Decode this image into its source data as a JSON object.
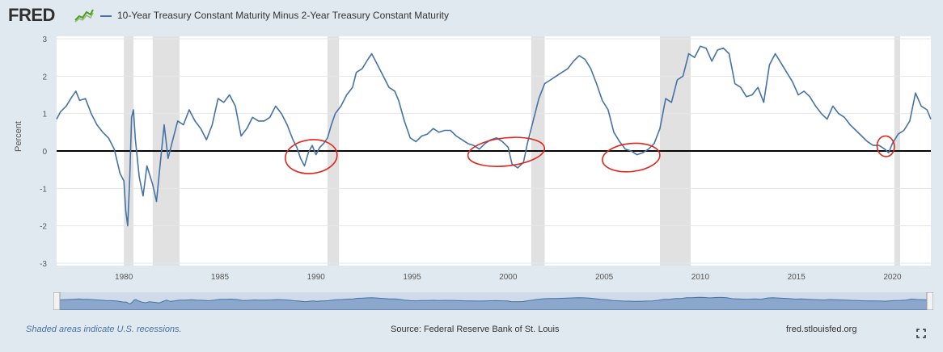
{
  "header": {
    "logo_text": "FRED",
    "logo_icon": "fred-chart-icon",
    "series_title": "10-Year Treasury Constant Maturity Minus 2-Year Treasury Constant Maturity"
  },
  "footer": {
    "recessions_note": "Shaded areas indicate U.S. recessions.",
    "source": "Source: Federal Reserve Bank of St. Louis",
    "site": "fred.stlouisfed.org",
    "fullscreen_icon": "fullscreen-icon"
  },
  "colors": {
    "series": "#4572a7",
    "recession": "#e1e1e1",
    "zero_line": "#000000",
    "annotation": "#e0261c",
    "page_bg": "#e1e9f0",
    "plot_bg": "#ffffff"
  },
  "chart_data": {
    "type": "line",
    "title": "10-Year Treasury Constant Maturity Minus 2-Year Treasury Constant Maturity",
    "ylabel": "Percent",
    "xlabel": "",
    "xlim": [
      1976.5,
      2022.0
    ],
    "ylim": [
      -3,
      3
    ],
    "x_ticks": [
      1980,
      1985,
      1990,
      1995,
      2000,
      2005,
      2010,
      2015,
      2020
    ],
    "y_ticks": [
      3,
      2,
      1,
      0,
      -1,
      -2,
      -3
    ],
    "grid": "horizontal",
    "reference_line": {
      "y": 0
    },
    "recessions": [
      [
        1980.0,
        1980.5
      ],
      [
        1981.5,
        1982.9
      ],
      [
        1990.6,
        1991.2
      ],
      [
        2001.2,
        2001.9
      ],
      [
        2007.9,
        2009.5
      ],
      [
        2020.1,
        2020.4
      ]
    ],
    "series": [
      {
        "values": [
          [
            1976.5,
            0.85
          ],
          [
            1976.7,
            1.05
          ],
          [
            1977.0,
            1.2
          ],
          [
            1977.3,
            1.45
          ],
          [
            1977.5,
            1.6
          ],
          [
            1977.7,
            1.35
          ],
          [
            1978.0,
            1.4
          ],
          [
            1978.3,
            1.0
          ],
          [
            1978.6,
            0.7
          ],
          [
            1978.9,
            0.5
          ],
          [
            1979.2,
            0.35
          ],
          [
            1979.5,
            0.05
          ],
          [
            1979.8,
            -0.6
          ],
          [
            1980.0,
            -0.8
          ],
          [
            1980.1,
            -1.6
          ],
          [
            1980.2,
            -2.0
          ],
          [
            1980.3,
            -0.8
          ],
          [
            1980.4,
            0.9
          ],
          [
            1980.5,
            1.1
          ],
          [
            1980.6,
            0.3
          ],
          [
            1980.8,
            -0.7
          ],
          [
            1981.0,
            -1.2
          ],
          [
            1981.2,
            -0.4
          ],
          [
            1981.5,
            -0.9
          ],
          [
            1981.7,
            -1.35
          ],
          [
            1981.9,
            -0.3
          ],
          [
            1982.1,
            0.7
          ],
          [
            1982.3,
            -0.2
          ],
          [
            1982.5,
            0.2
          ],
          [
            1982.8,
            0.8
          ],
          [
            1983.1,
            0.7
          ],
          [
            1983.4,
            1.1
          ],
          [
            1983.7,
            0.8
          ],
          [
            1984.0,
            0.6
          ],
          [
            1984.3,
            0.3
          ],
          [
            1984.6,
            0.7
          ],
          [
            1984.9,
            1.4
          ],
          [
            1985.2,
            1.3
          ],
          [
            1985.5,
            1.5
          ],
          [
            1985.8,
            1.2
          ],
          [
            1986.1,
            0.4
          ],
          [
            1986.4,
            0.6
          ],
          [
            1986.7,
            0.9
          ],
          [
            1987.0,
            0.8
          ],
          [
            1987.3,
            0.8
          ],
          [
            1987.6,
            0.9
          ],
          [
            1987.9,
            1.2
          ],
          [
            1988.2,
            1.0
          ],
          [
            1988.5,
            0.7
          ],
          [
            1988.8,
            0.3
          ],
          [
            1989.0,
            0.1
          ],
          [
            1989.2,
            -0.2
          ],
          [
            1989.4,
            -0.4
          ],
          [
            1989.6,
            -0.05
          ],
          [
            1989.8,
            0.15
          ],
          [
            1990.0,
            -0.1
          ],
          [
            1990.2,
            0.1
          ],
          [
            1990.4,
            0.2
          ],
          [
            1990.6,
            0.35
          ],
          [
            1990.8,
            0.7
          ],
          [
            1991.0,
            1.0
          ],
          [
            1991.3,
            1.2
          ],
          [
            1991.6,
            1.5
          ],
          [
            1991.9,
            1.7
          ],
          [
            1992.1,
            2.1
          ],
          [
            1992.4,
            2.2
          ],
          [
            1992.7,
            2.45
          ],
          [
            1992.9,
            2.6
          ],
          [
            1993.2,
            2.3
          ],
          [
            1993.5,
            2.0
          ],
          [
            1993.8,
            1.7
          ],
          [
            1994.1,
            1.6
          ],
          [
            1994.3,
            1.35
          ],
          [
            1994.6,
            0.8
          ],
          [
            1994.9,
            0.35
          ],
          [
            1995.2,
            0.25
          ],
          [
            1995.5,
            0.4
          ],
          [
            1995.8,
            0.45
          ],
          [
            1996.1,
            0.6
          ],
          [
            1996.4,
            0.5
          ],
          [
            1996.7,
            0.55
          ],
          [
            1997.0,
            0.55
          ],
          [
            1997.3,
            0.4
          ],
          [
            1997.6,
            0.3
          ],
          [
            1997.9,
            0.2
          ],
          [
            1998.2,
            0.15
          ],
          [
            1998.5,
            0.05
          ],
          [
            1998.8,
            0.2
          ],
          [
            1999.1,
            0.3
          ],
          [
            1999.4,
            0.35
          ],
          [
            1999.7,
            0.25
          ],
          [
            2000.0,
            0.1
          ],
          [
            2000.2,
            -0.35
          ],
          [
            2000.5,
            -0.45
          ],
          [
            2000.8,
            -0.3
          ],
          [
            2001.0,
            0.2
          ],
          [
            2001.3,
            0.8
          ],
          [
            2001.6,
            1.4
          ],
          [
            2001.9,
            1.8
          ],
          [
            2002.2,
            1.9
          ],
          [
            2002.5,
            2.0
          ],
          [
            2002.8,
            2.1
          ],
          [
            2003.1,
            2.2
          ],
          [
            2003.4,
            2.4
          ],
          [
            2003.7,
            2.55
          ],
          [
            2004.0,
            2.45
          ],
          [
            2004.3,
            2.2
          ],
          [
            2004.6,
            1.8
          ],
          [
            2004.9,
            1.35
          ],
          [
            2005.2,
            1.1
          ],
          [
            2005.5,
            0.5
          ],
          [
            2005.8,
            0.25
          ],
          [
            2006.1,
            0.05
          ],
          [
            2006.4,
            0.0
          ],
          [
            2006.7,
            -0.1
          ],
          [
            2007.0,
            -0.05
          ],
          [
            2007.3,
            0.05
          ],
          [
            2007.6,
            0.2
          ],
          [
            2007.9,
            0.6
          ],
          [
            2008.2,
            1.4
          ],
          [
            2008.5,
            1.3
          ],
          [
            2008.8,
            1.9
          ],
          [
            2009.1,
            2.0
          ],
          [
            2009.4,
            2.6
          ],
          [
            2009.7,
            2.5
          ],
          [
            2010.0,
            2.8
          ],
          [
            2010.3,
            2.75
          ],
          [
            2010.6,
            2.4
          ],
          [
            2010.9,
            2.7
          ],
          [
            2011.2,
            2.75
          ],
          [
            2011.5,
            2.6
          ],
          [
            2011.8,
            1.8
          ],
          [
            2012.1,
            1.7
          ],
          [
            2012.4,
            1.45
          ],
          [
            2012.7,
            1.5
          ],
          [
            2013.0,
            1.7
          ],
          [
            2013.3,
            1.3
          ],
          [
            2013.6,
            2.3
          ],
          [
            2013.9,
            2.6
          ],
          [
            2014.2,
            2.35
          ],
          [
            2014.5,
            2.1
          ],
          [
            2014.8,
            1.85
          ],
          [
            2015.1,
            1.5
          ],
          [
            2015.4,
            1.6
          ],
          [
            2015.7,
            1.45
          ],
          [
            2016.0,
            1.2
          ],
          [
            2016.3,
            1.0
          ],
          [
            2016.6,
            0.85
          ],
          [
            2016.9,
            1.2
          ],
          [
            2017.2,
            1.0
          ],
          [
            2017.5,
            0.9
          ],
          [
            2017.8,
            0.7
          ],
          [
            2018.1,
            0.55
          ],
          [
            2018.4,
            0.4
          ],
          [
            2018.7,
            0.25
          ],
          [
            2019.0,
            0.15
          ],
          [
            2019.3,
            0.15
          ],
          [
            2019.6,
            0.05
          ],
          [
            2019.8,
            -0.05
          ],
          [
            2020.0,
            0.2
          ],
          [
            2020.3,
            0.45
          ],
          [
            2020.6,
            0.55
          ],
          [
            2020.9,
            0.8
          ],
          [
            2021.2,
            1.55
          ],
          [
            2021.5,
            1.2
          ],
          [
            2021.8,
            1.1
          ],
          [
            2022.0,
            0.85
          ]
        ]
      }
    ],
    "annotations": [
      {
        "type": "red-circle",
        "x_range": [
          1988.4,
          1991.1
        ],
        "y_range": [
          -0.6,
          0.3
        ]
      },
      {
        "type": "red-circle",
        "x_range": [
          1997.9,
          2001.9
        ],
        "y_range": [
          -0.4,
          0.35
        ]
      },
      {
        "type": "red-circle",
        "x_range": [
          2004.9,
          2007.9
        ],
        "y_range": [
          -0.55,
          0.2
        ]
      },
      {
        "type": "red-circle",
        "x_range": [
          2019.2,
          2020.1
        ],
        "y_range": [
          -0.15,
          0.4
        ]
      }
    ],
    "navigator": {
      "range": [
        1976.5,
        2022.0
      ]
    }
  }
}
